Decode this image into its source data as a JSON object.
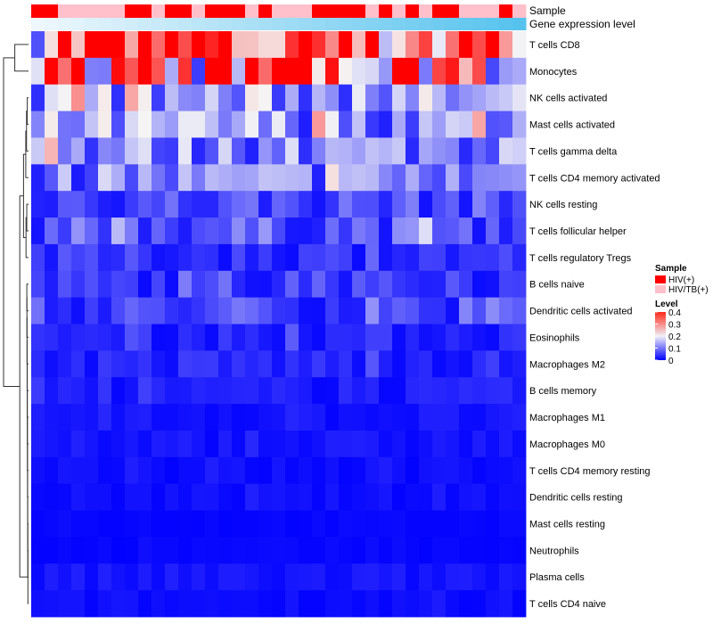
{
  "chart_data": {
    "type": "heatmap",
    "annotation_labels": {
      "sample": "Sample",
      "gene_expression": "Gene expression level"
    },
    "rows": [
      "T cells CD8",
      "Monocytes",
      "NK cells activated",
      "Mast cells activated",
      "T cells gamma delta",
      "T cells CD4 memory activated",
      "NK cells resting",
      "T cells follicular helper",
      "T cells regulatory  Tregs",
      "B cells naive",
      "Dendritic cells activated",
      "Eosinophils",
      "Macrophages M2",
      "B cells memory",
      "Macrophages M1",
      "Macrophages M0",
      "T cells CD4 memory resting",
      "Dendritic cells resting",
      "Mast cells resting",
      "Neutrophils",
      "Plasma cells",
      "T cells CD4 naive"
    ],
    "row_base_levels": [
      0.33,
      0.24,
      0.12,
      0.12,
      0.11,
      0.1,
      0.06,
      0.07,
      0.04,
      0.04,
      0.05,
      0.03,
      0.03,
      0.02,
      0.015,
      0.015,
      0.01,
      0.01,
      0.005,
      0.005,
      0.015,
      0.01
    ],
    "num_columns": 37,
    "sample_groups": [
      "HIV(+)",
      "HIV(+)",
      "HIV/TB(+)",
      "HIV/TB(+)",
      "HIV/TB(+)",
      "HIV/TB(+)",
      "HIV/TB(+)",
      "HIV(+)",
      "HIV(+)",
      "HIV/TB(+)",
      "HIV(+)",
      "HIV(+)",
      "HIV/TB(+)",
      "HIV(+)",
      "HIV(+)",
      "HIV(+)",
      "HIV/TB(+)",
      "HIV(+)",
      "HIV/TB(+)",
      "HIV/TB(+)",
      "HIV/TB(+)",
      "HIV(+)",
      "HIV(+)",
      "HIV(+)",
      "HIV(+)",
      "HIV/TB(+)",
      "HIV(+)",
      "HIV/TB(+)",
      "HIV(+)",
      "HIV/TB(+)",
      "HIV(+)",
      "HIV(+)",
      "HIV/TB(+)",
      "HIV/TB(+)",
      "HIV/TB(+)",
      "HIV(+)",
      "HIV/TB(+)"
    ],
    "color_scale": {
      "low": "#0000ff",
      "mid": "#f5f5f5",
      "high": "#ff0000",
      "range": [
        0,
        0.4
      ]
    },
    "gene_expression_gradient": {
      "from": "#eef7fc",
      "to": "#56c3ee"
    },
    "legend": {
      "sample_title": "Sample",
      "sample_entries": [
        {
          "label": "HIV(+)",
          "color": "#ff0000"
        },
        {
          "label": "HIV/TB(+)",
          "color": "#ffc0cb"
        }
      ],
      "level_title": "Level",
      "level_ticks": [
        "0.4",
        "0.3",
        "0.2",
        "0.1",
        "0"
      ],
      "level_tick_values": [
        0.4,
        0.3,
        0.2,
        0.1,
        0
      ],
      "placement": "right"
    },
    "dendrogram": "row",
    "seed": 7
  }
}
